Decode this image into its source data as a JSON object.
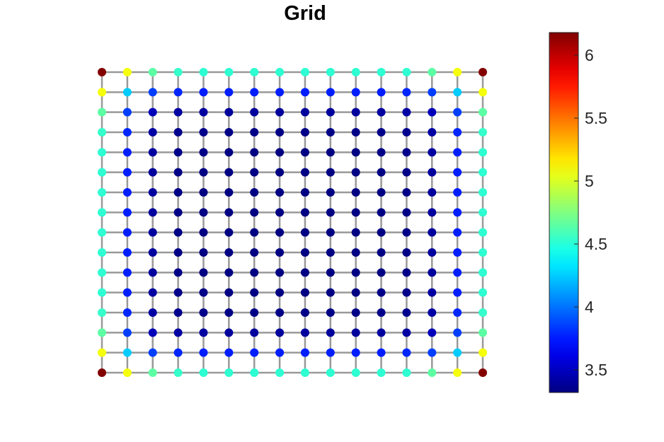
{
  "chart_data": {
    "type": "scatter",
    "title": "Grid",
    "xlabel": "",
    "ylabel": "",
    "grid": {
      "rows": 16,
      "cols": 16,
      "edges": "4-neighbor lattice",
      "edge_color": "#999999"
    },
    "node_values": [
      [
        6.17,
        5.08,
        4.65,
        4.54,
        4.52,
        4.52,
        4.52,
        4.52,
        4.52,
        4.52,
        4.52,
        4.52,
        4.52,
        4.65,
        5.08,
        6.17
      ],
      [
        5.08,
        4.25,
        3.85,
        3.78,
        3.76,
        3.76,
        3.76,
        3.76,
        3.76,
        3.76,
        3.76,
        3.76,
        3.78,
        3.85,
        4.25,
        5.08
      ],
      [
        4.65,
        3.85,
        3.48,
        3.42,
        3.41,
        3.4,
        3.4,
        3.4,
        3.4,
        3.4,
        3.4,
        3.41,
        3.42,
        3.48,
        3.85,
        4.65
      ],
      [
        4.54,
        3.78,
        3.42,
        3.36,
        3.35,
        3.34,
        3.34,
        3.34,
        3.34,
        3.34,
        3.34,
        3.35,
        3.36,
        3.42,
        3.78,
        4.54
      ],
      [
        4.52,
        3.76,
        3.41,
        3.35,
        3.34,
        3.33,
        3.33,
        3.33,
        3.33,
        3.33,
        3.33,
        3.34,
        3.35,
        3.41,
        3.76,
        4.52
      ],
      [
        4.52,
        3.76,
        3.4,
        3.34,
        3.33,
        3.33,
        3.33,
        3.33,
        3.33,
        3.33,
        3.33,
        3.33,
        3.34,
        3.4,
        3.76,
        4.52
      ],
      [
        4.52,
        3.76,
        3.4,
        3.34,
        3.33,
        3.33,
        3.33,
        3.33,
        3.33,
        3.33,
        3.33,
        3.33,
        3.34,
        3.4,
        3.76,
        4.52
      ],
      [
        4.52,
        3.76,
        3.4,
        3.34,
        3.33,
        3.33,
        3.33,
        3.33,
        3.33,
        3.33,
        3.33,
        3.33,
        3.34,
        3.4,
        3.76,
        4.52
      ],
      [
        4.52,
        3.76,
        3.4,
        3.34,
        3.33,
        3.33,
        3.33,
        3.33,
        3.33,
        3.33,
        3.33,
        3.33,
        3.34,
        3.4,
        3.76,
        4.52
      ],
      [
        4.52,
        3.76,
        3.4,
        3.34,
        3.33,
        3.33,
        3.33,
        3.33,
        3.33,
        3.33,
        3.33,
        3.33,
        3.34,
        3.4,
        3.76,
        4.52
      ],
      [
        4.52,
        3.76,
        3.4,
        3.34,
        3.33,
        3.33,
        3.33,
        3.33,
        3.33,
        3.33,
        3.33,
        3.33,
        3.34,
        3.4,
        3.76,
        4.52
      ],
      [
        4.52,
        3.76,
        3.41,
        3.35,
        3.34,
        3.33,
        3.33,
        3.33,
        3.33,
        3.33,
        3.33,
        3.34,
        3.35,
        3.41,
        3.76,
        4.52
      ],
      [
        4.54,
        3.78,
        3.42,
        3.36,
        3.35,
        3.34,
        3.34,
        3.34,
        3.34,
        3.34,
        3.34,
        3.35,
        3.36,
        3.42,
        3.78,
        4.54
      ],
      [
        4.65,
        3.85,
        3.48,
        3.42,
        3.41,
        3.4,
        3.4,
        3.4,
        3.4,
        3.4,
        3.4,
        3.41,
        3.42,
        3.48,
        3.85,
        4.65
      ],
      [
        5.08,
        4.25,
        3.85,
        3.78,
        3.76,
        3.76,
        3.76,
        3.76,
        3.76,
        3.76,
        3.76,
        3.76,
        3.78,
        3.85,
        4.25,
        5.08
      ],
      [
        6.17,
        5.08,
        4.65,
        4.54,
        4.52,
        4.52,
        4.52,
        4.52,
        4.52,
        4.52,
        4.52,
        4.52,
        4.52,
        4.65,
        5.08,
        6.17
      ]
    ],
    "colorbar": {
      "colormap": "jet",
      "range": [
        3.32,
        6.18
      ],
      "ticks": [
        3.5,
        4,
        4.5,
        5,
        5.5,
        6
      ],
      "tick_labels": [
        "3.5",
        "4",
        "4.5",
        "5",
        "5.5",
        "6"
      ],
      "placement": "right"
    }
  }
}
